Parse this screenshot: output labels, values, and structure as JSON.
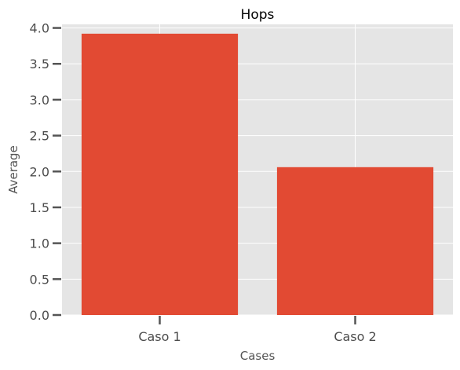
{
  "chart_data": {
    "type": "bar",
    "title": "Hops",
    "xlabel": "Cases",
    "ylabel": "Average",
    "categories": [
      "Caso 1",
      "Caso 2"
    ],
    "values": [
      3.92,
      2.06
    ],
    "ylim": [
      0,
      4.05
    ],
    "yticks": [
      "0.0",
      "0.5",
      "1.0",
      "1.5",
      "2.0",
      "2.5",
      "3.0",
      "3.5",
      "4.0"
    ],
    "grid": true,
    "bar_color": "#e24a33",
    "background_color": "#e5e5e5",
    "grid_color": "#ffffff"
  }
}
